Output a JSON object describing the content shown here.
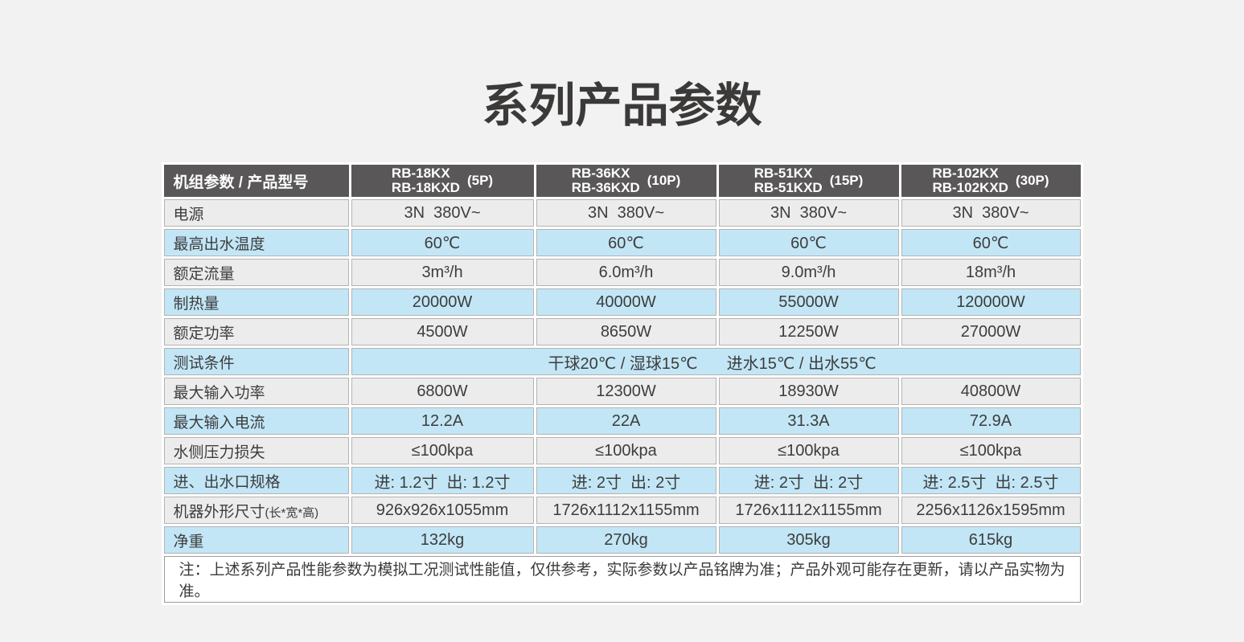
{
  "title": "系列产品参数",
  "colors": {
    "page_background": "#f2f2f3",
    "header_background": "#595757",
    "row_gray": "#ececec",
    "row_blue": "#c2e6f6",
    "cell_border": "#b3b3b3",
    "title_color": "#3b3a39"
  },
  "table": {
    "corner_label": "机组参数 / 产品型号",
    "columns": [
      {
        "model_line1": "RB-18KX",
        "model_line2": "RB-18KXD",
        "capacity": "(5P)"
      },
      {
        "model_line1": "RB-36KX",
        "model_line2": "RB-36KXD",
        "capacity": "(10P)"
      },
      {
        "model_line1": "RB-51KX",
        "model_line2": "RB-51KXD",
        "capacity": "(15P)"
      },
      {
        "model_line1": "RB-102KX",
        "model_line2": "RB-102KXD",
        "capacity": "(30P)"
      }
    ],
    "rows": [
      {
        "label": "电源",
        "tone": "gray",
        "values": [
          "3N  380V~",
          "3N  380V~",
          "3N  380V~",
          "3N  380V~"
        ]
      },
      {
        "label": "最高出水温度",
        "tone": "blue",
        "values": [
          "60℃",
          "60℃",
          "60℃",
          "60℃"
        ]
      },
      {
        "label": "额定流量",
        "tone": "gray",
        "values": [
          "3m³/h",
          "6.0m³/h",
          "9.0m³/h",
          "18m³/h"
        ]
      },
      {
        "label": "制热量",
        "tone": "blue",
        "values": [
          "20000W",
          "40000W",
          "55000W",
          "120000W"
        ]
      },
      {
        "label": "额定功率",
        "tone": "gray",
        "values": [
          "4500W",
          "8650W",
          "12250W",
          "27000W"
        ]
      },
      {
        "label": "测试条件",
        "tone": "blue",
        "merged": [
          "干球20℃ / 湿球15℃",
          "进水15℃ / 出水55℃"
        ]
      },
      {
        "label": "最大输入功率",
        "tone": "gray",
        "values": [
          "6800W",
          "12300W",
          "18930W",
          "40800W"
        ]
      },
      {
        "label": "最大输入电流",
        "tone": "blue",
        "values": [
          "12.2A",
          "22A",
          "31.3A",
          "72.9A"
        ]
      },
      {
        "label": "水侧压力损失",
        "tone": "gray",
        "values": [
          "≤100kpa",
          "≤100kpa",
          "≤100kpa",
          "≤100kpa"
        ]
      },
      {
        "label": "进、出水口规格",
        "tone": "blue",
        "values": [
          "进: 1.2寸  出: 1.2寸",
          "进: 2寸  出: 2寸",
          "进: 2寸  出: 2寸",
          "进: 2.5寸  出: 2.5寸"
        ]
      },
      {
        "label": "机器外形尺寸",
        "label_suffix": "(长*宽*高)",
        "tone": "gray",
        "values": [
          "926x926x1055mm",
          "1726x1112x1155mm",
          "1726x1112x1155mm",
          "2256x1126x1595mm"
        ]
      },
      {
        "label": "净重",
        "tone": "blue",
        "values": [
          "132kg",
          "270kg",
          "305kg",
          "615kg"
        ]
      }
    ],
    "note": "注：上述系列产品性能参数为模拟工况测试性能值，仅供参考，实际参数以产品铭牌为准；产品外观可能存在更新，请以产品实物为准。"
  }
}
